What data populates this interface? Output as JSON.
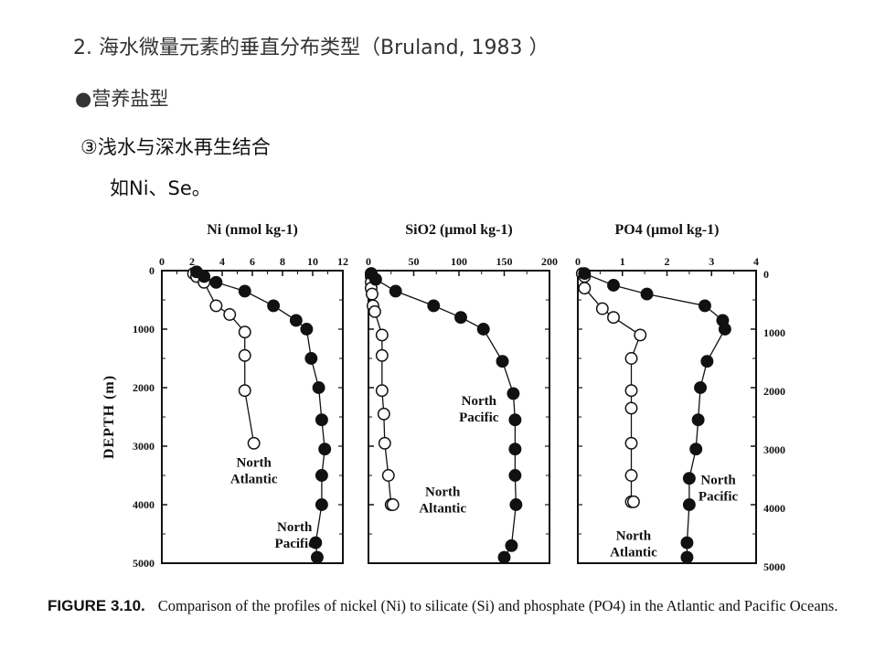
{
  "slide": {
    "heading": "2. 海水微量元素的垂直分布类型（Bruland, 1983 ）",
    "bullet": "●营养盐型",
    "subheading": "③浅水与深水再生结合",
    "example": "如Ni、Se。"
  },
  "figure": {
    "caption_label": "FIGURE 3.10.",
    "caption_text": "Comparison of the profiles of nickel (Ni) to silicate (Si) and phosphate (PO4) in the Atlantic and Pacific Oceans."
  },
  "chart_data": [
    {
      "type": "line",
      "title": "Ni (nmol kg-1)",
      "ylabel": "DEPTH (m)",
      "xlim": [
        0,
        12
      ],
      "ylim": [
        5000,
        0
      ],
      "xticks": [
        0,
        2,
        4,
        6,
        8,
        10,
        12
      ],
      "yticks": [
        0,
        1000,
        2000,
        3000,
        4000,
        5000
      ],
      "series": [
        {
          "name": "North Atlantic",
          "marker": "open",
          "x": [
            2.1,
            2.3,
            2.8,
            3.6,
            4.5,
            5.5,
            5.5,
            5.5,
            6.1
          ],
          "y": [
            50,
            100,
            200,
            600,
            750,
            1050,
            1450,
            2050,
            2950
          ]
        },
        {
          "name": "North Pacific",
          "marker": "filled",
          "x": [
            2.3,
            2.8,
            3.6,
            5.5,
            7.4,
            8.9,
            9.6,
            9.9,
            10.4,
            10.6,
            10.8,
            10.6,
            10.6,
            10.2,
            10.3
          ],
          "y": [
            20,
            100,
            200,
            350,
            600,
            850,
            1000,
            1500,
            2000,
            2550,
            3050,
            3500,
            4000,
            4650,
            4900
          ]
        }
      ],
      "annotations": [
        {
          "text": [
            "North",
            "Atlantic"
          ],
          "x": 6.1,
          "y": 3350
        },
        {
          "text": [
            "North",
            "Pacific"
          ],
          "x": 8.8,
          "y": 4450
        }
      ]
    },
    {
      "type": "line",
      "title": "SiO2 (μmol kg-1)",
      "xlim": [
        0,
        200
      ],
      "ylim": [
        5000,
        0
      ],
      "xticks": [
        0,
        50,
        100,
        150,
        200
      ],
      "yticks": [
        0,
        1000,
        2000,
        3000,
        4000,
        5000
      ],
      "series": [
        {
          "name": "North Atlantic",
          "marker": "open",
          "x": [
            3,
            3,
            3,
            3,
            4,
            5,
            7,
            15,
            15,
            15,
            17,
            18,
            22,
            25,
            27
          ],
          "y": [
            50,
            100,
            200,
            300,
            400,
            600,
            700,
            1100,
            1450,
            2050,
            2450,
            2950,
            3500,
            4000,
            4000
          ]
        },
        {
          "name": "North Pacific",
          "marker": "filled",
          "x": [
            3,
            8,
            30,
            72,
            102,
            127,
            148,
            160,
            162,
            162,
            162,
            163,
            158,
            150
          ],
          "y": [
            50,
            150,
            350,
            600,
            800,
            1000,
            1550,
            2100,
            2550,
            3050,
            3500,
            4000,
            4700,
            4900
          ]
        }
      ],
      "annotations": [
        {
          "text": [
            "North",
            "Pacific"
          ],
          "x": 122,
          "y": 2300
        },
        {
          "text": [
            "North",
            "Altantic"
          ],
          "x": 82,
          "y": 3850
        }
      ]
    },
    {
      "type": "line",
      "title": "PO4 (μmol kg-1)",
      "xlim": [
        0,
        4
      ],
      "ylim": [
        5000,
        0
      ],
      "xticks": [
        0,
        1,
        2,
        3,
        4
      ],
      "yticks": [
        0,
        1000,
        2000,
        3000,
        4000,
        5000
      ],
      "yticks_side": "right",
      "series": [
        {
          "name": "North Atlantic",
          "marker": "open",
          "x": [
            0.1,
            0.15,
            0.15,
            0.55,
            0.8,
            1.4,
            1.2,
            1.2,
            1.2,
            1.2,
            1.2,
            1.2,
            1.25
          ],
          "y": [
            50,
            100,
            300,
            650,
            800,
            1100,
            1500,
            2050,
            2350,
            2950,
            3500,
            3950,
            3950
          ]
        },
        {
          "name": "North Pacific",
          "marker": "filled",
          "x": [
            0.15,
            0.8,
            1.55,
            2.85,
            3.25,
            3.3,
            2.9,
            2.75,
            2.7,
            2.65,
            2.5,
            2.5,
            2.45,
            2.45
          ],
          "y": [
            50,
            250,
            400,
            600,
            850,
            1000,
            1550,
            2000,
            2550,
            3050,
            3550,
            4000,
            4650,
            4900
          ]
        }
      ],
      "annotations": [
        {
          "text": [
            "North",
            "Pacific"
          ],
          "x": 3.15,
          "y": 3650
        },
        {
          "text": [
            "North",
            "Atlantic"
          ],
          "x": 1.25,
          "y": 4600
        }
      ]
    }
  ]
}
